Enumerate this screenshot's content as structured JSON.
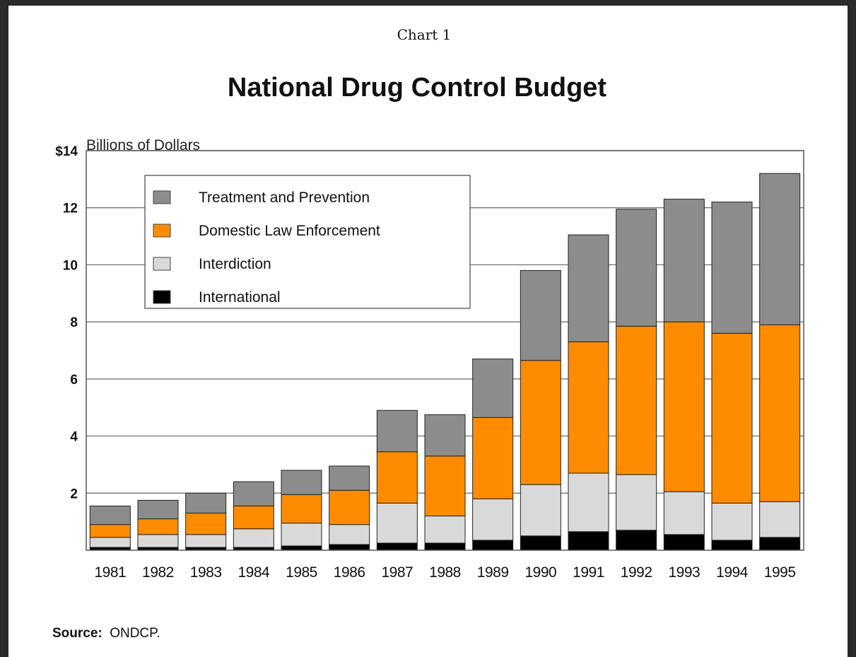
{
  "chart_data": {
    "type": "bar",
    "stacked": true,
    "supertitle": "Chart 1",
    "title": "National Drug Control Budget",
    "ylabel": "Billions of Dollars",
    "ylim": [
      0,
      14
    ],
    "yticks": [
      {
        "value": 14,
        "label": "$14"
      },
      {
        "value": 12,
        "label": "12"
      },
      {
        "value": 10,
        "label": "10"
      },
      {
        "value": 8,
        "label": "8"
      },
      {
        "value": 6,
        "label": "6"
      },
      {
        "value": 4,
        "label": "4"
      },
      {
        "value": 2,
        "label": "2"
      }
    ],
    "grid": true,
    "legend_position": "top-left",
    "categories": [
      "1981",
      "1982",
      "1983",
      "1984",
      "1985",
      "1986",
      "1987",
      "1988",
      "1989",
      "1990",
      "1991",
      "1992",
      "1993",
      "1994",
      "1995"
    ],
    "series": [
      {
        "name": "International",
        "color": "#000000",
        "values": [
          0.1,
          0.1,
          0.1,
          0.1,
          0.15,
          0.2,
          0.25,
          0.25,
          0.35,
          0.5,
          0.65,
          0.7,
          0.55,
          0.35,
          0.45
        ]
      },
      {
        "name": "Interdiction",
        "color": "#d9d9d9",
        "values": [
          0.35,
          0.45,
          0.45,
          0.65,
          0.8,
          0.7,
          1.4,
          0.95,
          1.45,
          1.8,
          2.05,
          1.95,
          1.5,
          1.3,
          1.25
        ]
      },
      {
        "name": "Domestic Law Enforcement",
        "color": "#ff8c00",
        "values": [
          0.45,
          0.55,
          0.75,
          0.8,
          1.0,
          1.2,
          1.8,
          2.1,
          2.85,
          4.35,
          4.6,
          5.2,
          5.95,
          5.95,
          6.2
        ]
      },
      {
        "name": "Treatment and Prevention",
        "color": "#8c8c8c",
        "values": [
          0.65,
          0.65,
          0.7,
          0.85,
          0.85,
          0.85,
          1.45,
          1.45,
          2.05,
          3.15,
          3.75,
          4.1,
          4.3,
          4.6,
          5.3
        ]
      }
    ],
    "legend_order": [
      "Treatment and Prevention",
      "Domestic Law Enforcement",
      "Interdiction",
      "International"
    ],
    "source_label": "Source:",
    "source_text": "ONDCP."
  }
}
